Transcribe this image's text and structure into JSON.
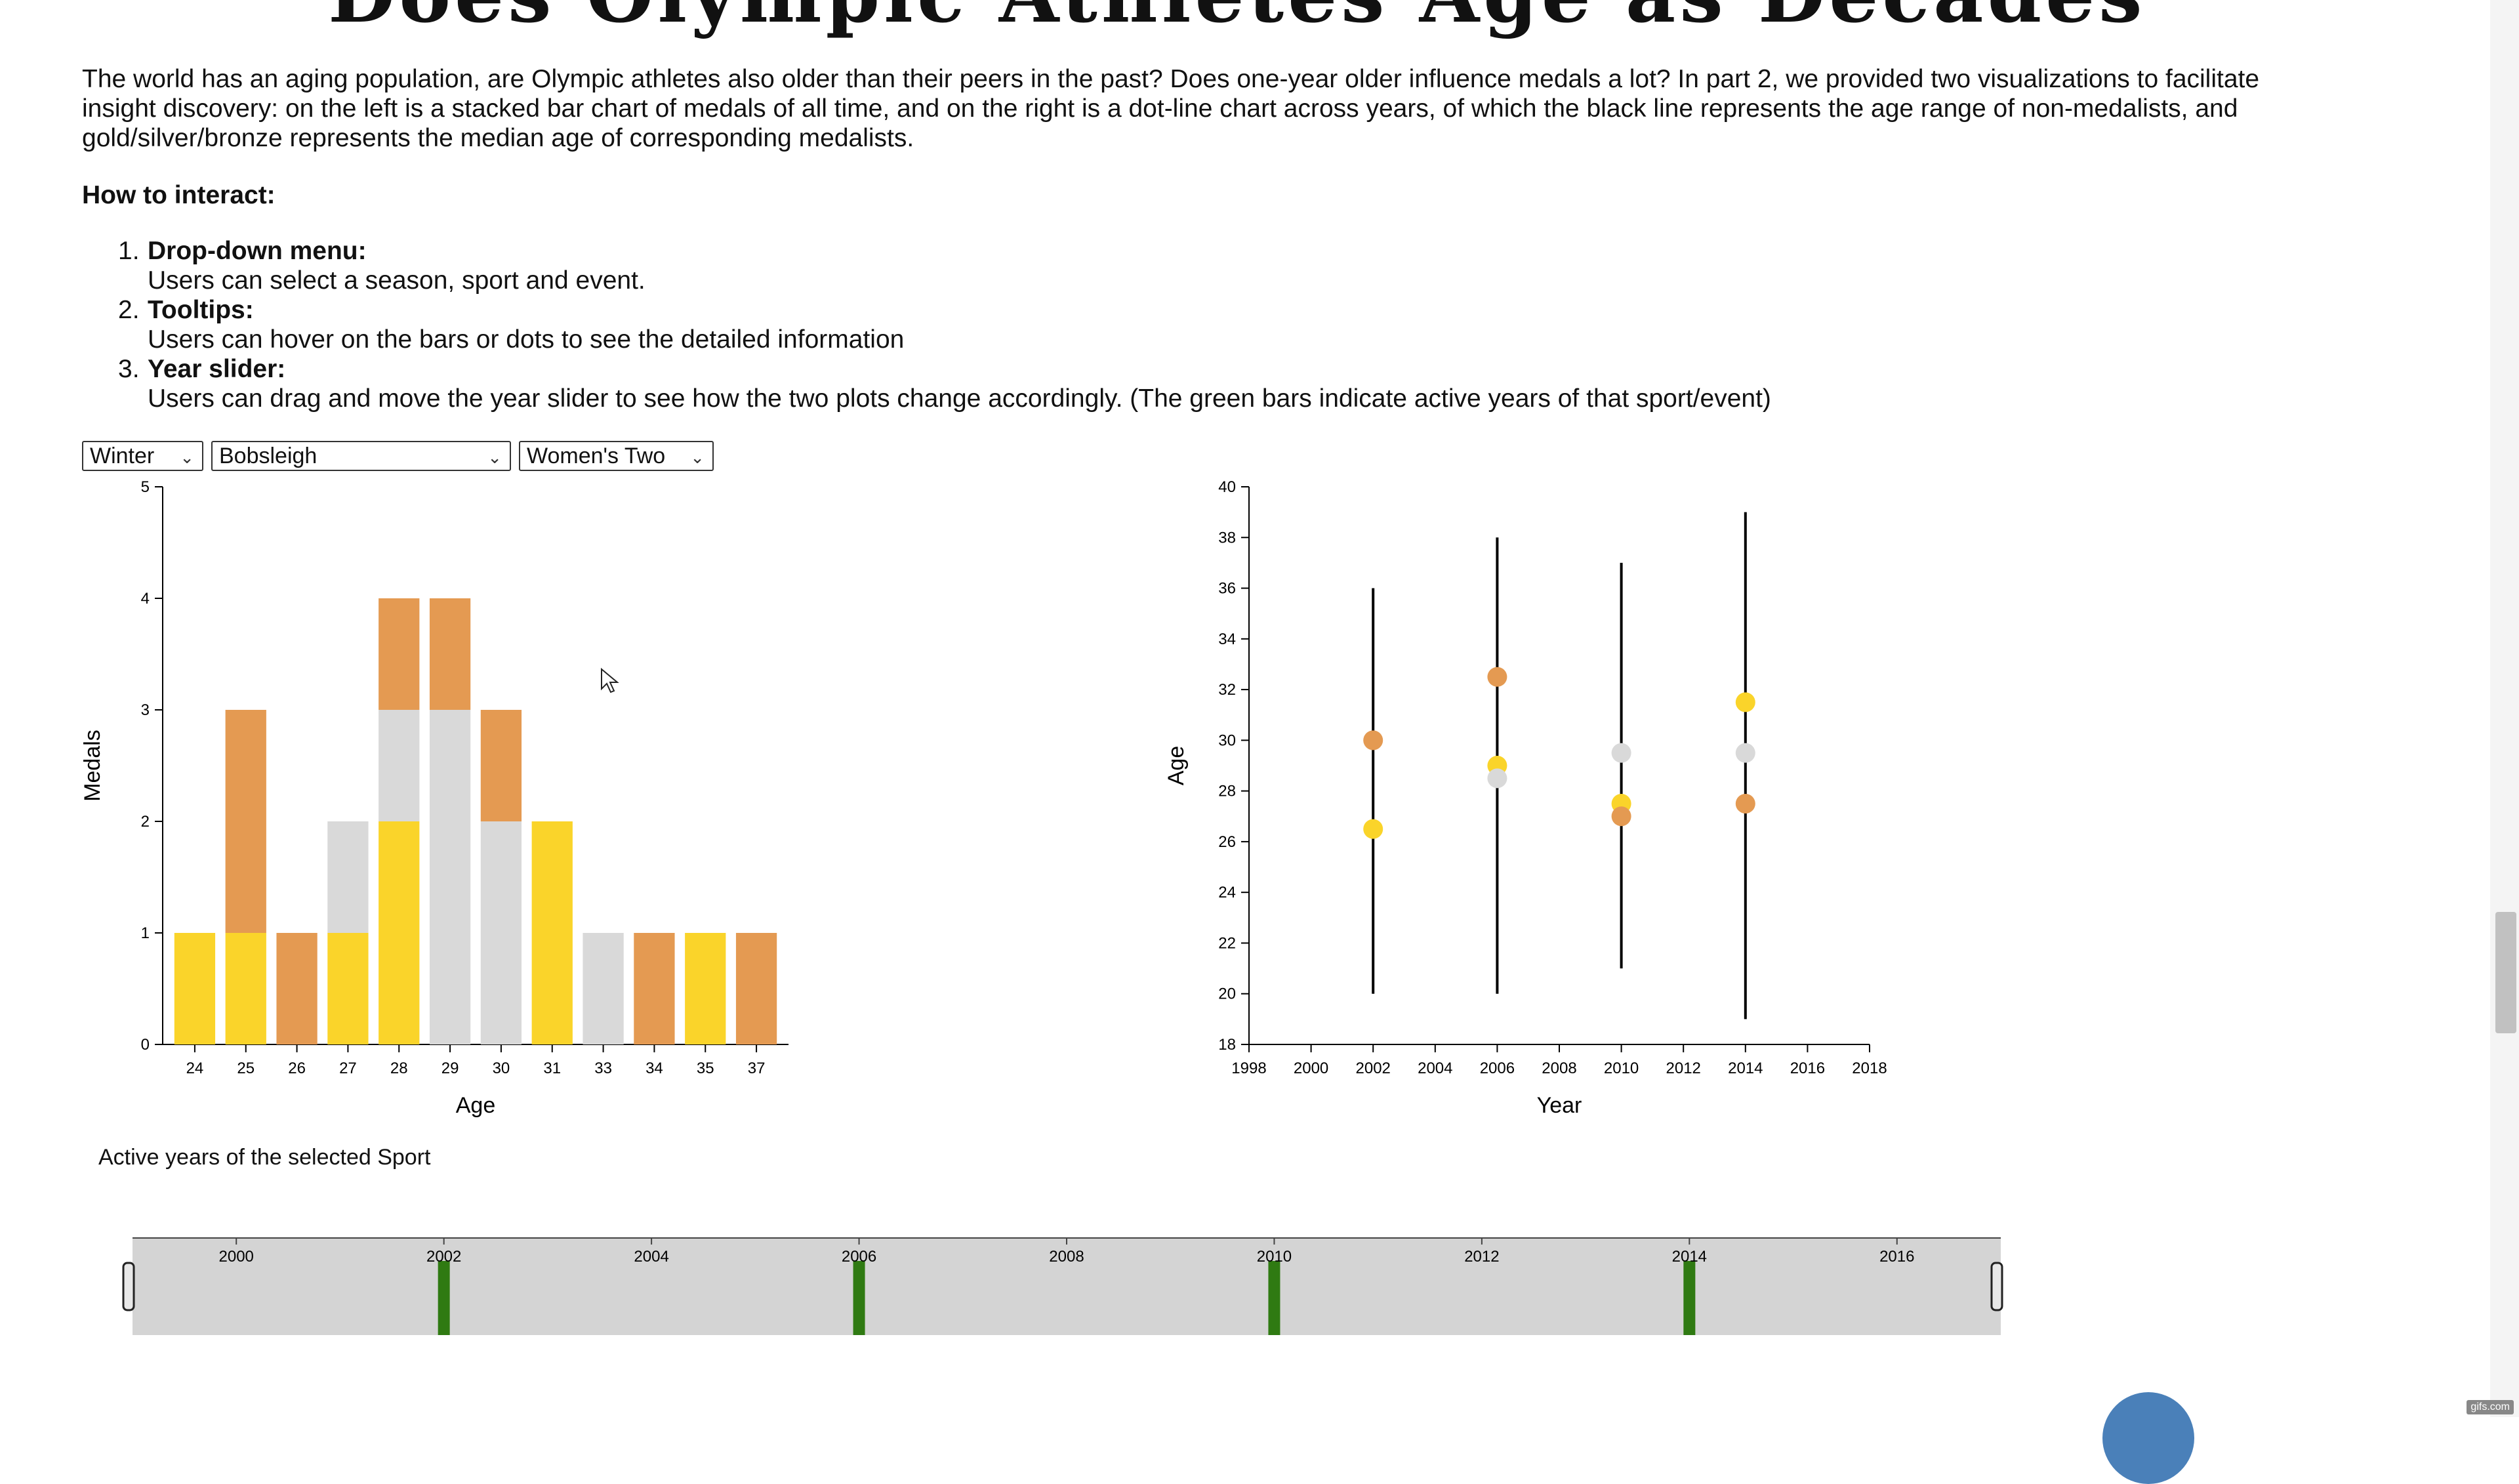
{
  "page": {
    "title": "Does Olympic Athletes Age as Decades",
    "intro": "The world has an aging population, are Olympic athletes also older than their peers in the past? Does one-year older influence medals a lot? In part 2, we provided two visualizations to facilitate insight discovery: on the left is a stacked bar chart of medals of all time, and on the right is a dot-line chart across years, of which the black line represents the age range of non-medalists, and gold/silver/bronze represents the median age of corresponding medalists.",
    "howto_heading": "How to interact:",
    "steps": [
      {
        "num": "1.",
        "title": "Drop-down menu:",
        "desc": "Users can select a season, sport and event."
      },
      {
        "num": "2.",
        "title": "Tooltips:",
        "desc": "Users can hover on the bars or dots to see the detailed information"
      },
      {
        "num": "3.",
        "title": "Year slider:",
        "desc": "Users can drag and move the year slider to see how the two plots change accordingly. (The green bars indicate active years of that sport/event)"
      }
    ],
    "active_years_label": "Active years of the selected Sport",
    "watermark": "gifs.com"
  },
  "controls": {
    "season": "Winter",
    "sport": "Bobsleigh",
    "event": "Women's Two"
  },
  "colors": {
    "gold": "#fad42a",
    "silver": "#d9d9d9",
    "bronze": "#e49a52",
    "range_line": "#000000",
    "active_year": "#2f7a12",
    "slider_track": "#d4d4d4"
  },
  "chart_data": [
    {
      "type": "bar",
      "stacked": true,
      "categories": [
        "24",
        "25",
        "26",
        "27",
        "28",
        "29",
        "30",
        "31",
        "33",
        "34",
        "35",
        "37"
      ],
      "series": [
        {
          "name": "gold",
          "values": [
            1,
            1,
            0,
            1,
            2,
            0,
            0,
            2,
            0,
            0,
            1,
            0
          ]
        },
        {
          "name": "silver",
          "values": [
            0,
            0,
            0,
            1,
            1,
            3,
            2,
            0,
            1,
            0,
            0,
            0
          ]
        },
        {
          "name": "bronze",
          "values": [
            0,
            2,
            1,
            0,
            1,
            1,
            1,
            0,
            0,
            1,
            0,
            1
          ]
        }
      ],
      "xlabel": "Age",
      "ylabel": "Medals",
      "ylim": [
        0,
        5
      ],
      "yticks": [
        "0",
        "1",
        "2",
        "3",
        "4",
        "5"
      ]
    },
    {
      "type": "scatter",
      "xlabel": "Year",
      "ylabel": "Age",
      "xlim": [
        1998,
        2018
      ],
      "ylim": [
        18,
        40
      ],
      "xticks": [
        "1998",
        "2000",
        "2002",
        "2004",
        "2006",
        "2008",
        "2010",
        "2012",
        "2014",
        "2016",
        "2018"
      ],
      "yticks": [
        "18",
        "20",
        "22",
        "24",
        "26",
        "28",
        "30",
        "32",
        "34",
        "36",
        "38",
        "40"
      ],
      "ranges": [
        {
          "year": 2002,
          "min": 20,
          "max": 36
        },
        {
          "year": 2006,
          "min": 20,
          "max": 38
        },
        {
          "year": 2010,
          "min": 21,
          "max": 37
        },
        {
          "year": 2014,
          "min": 19,
          "max": 39
        }
      ],
      "series": [
        {
          "name": "gold",
          "points": [
            {
              "x": 2002,
              "y": 26.5
            },
            {
              "x": 2006,
              "y": 29
            },
            {
              "x": 2010,
              "y": 27.5
            },
            {
              "x": 2014,
              "y": 31.5
            }
          ]
        },
        {
          "name": "silver",
          "points": [
            {
              "x": 2006,
              "y": 28.5
            },
            {
              "x": 2010,
              "y": 29.5
            },
            {
              "x": 2014,
              "y": 29.5
            }
          ]
        },
        {
          "name": "bronze",
          "points": [
            {
              "x": 2002,
              "y": 30
            },
            {
              "x": 2006,
              "y": 32.5
            },
            {
              "x": 2010,
              "y": 27
            },
            {
              "x": 2014,
              "y": 27.5
            }
          ]
        }
      ]
    }
  ],
  "slider": {
    "ticks": [
      "2000",
      "2002",
      "2004",
      "2006",
      "2008",
      "2010",
      "2012",
      "2014",
      "2016"
    ],
    "active_years": [
      2002,
      2006,
      2010,
      2014
    ],
    "range": [
      1999,
      2017
    ]
  }
}
